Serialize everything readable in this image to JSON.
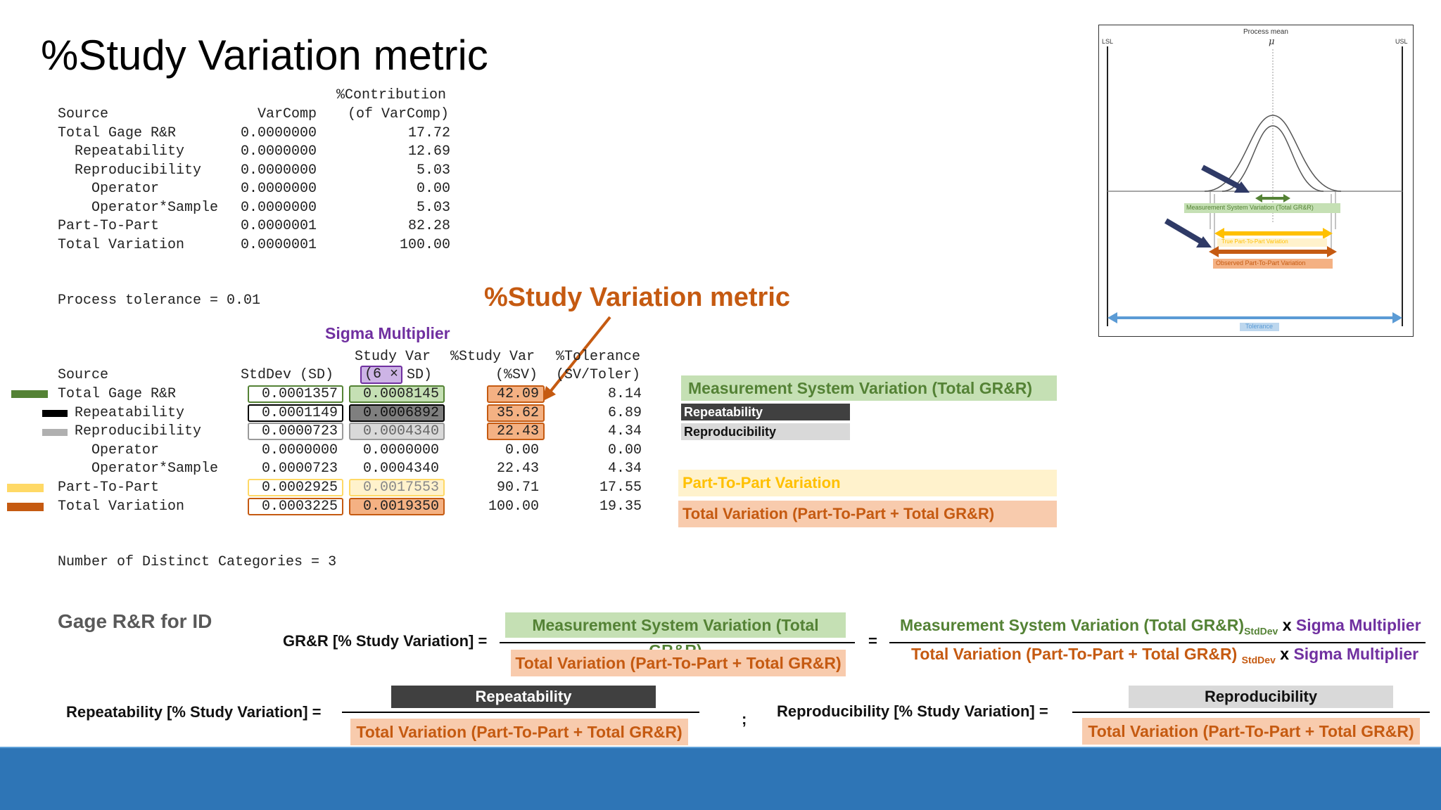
{
  "title": "%Study Variation metric",
  "table1": {
    "header_pct_contribution": "%Contribution",
    "header_source": "Source",
    "header_varcomp": "VarComp",
    "header_of_varcomp": "(of VarComp)",
    "rows": [
      {
        "source": "Total Gage R&R",
        "varcomp": "0.0000000",
        "contrib": "17.72"
      },
      {
        "source": "  Repeatability",
        "varcomp": "0.0000000",
        "contrib": "12.69"
      },
      {
        "source": "  Reproducibility",
        "varcomp": "0.0000000",
        "contrib": "5.03"
      },
      {
        "source": "    Operator",
        "varcomp": "0.0000000",
        "contrib": "0.00"
      },
      {
        "source": "    Operator*Sample",
        "varcomp": "0.0000000",
        "contrib": "5.03"
      },
      {
        "source": "Part-To-Part",
        "varcomp": "0.0000001",
        "contrib": "82.28"
      },
      {
        "source": "Total Variation",
        "varcomp": "0.0000001",
        "contrib": "100.00"
      }
    ]
  },
  "process_tolerance": "Process tolerance = 0.01",
  "callout_metric": "%Study Variation metric",
  "sigma_multiplier_label": "Sigma Multiplier",
  "table2": {
    "header_study_var": "Study Var",
    "header_pct_study_var": "%Study Var",
    "header_pct_tolerance": "%Tolerance",
    "header_source": "Source",
    "header_stddev": "StdDev (SD)",
    "header_6sd_box": "(6 ×",
    "header_6sd_rest": "SD)",
    "header_sv": "(%SV)",
    "header_sv_toler": "(SV/Toler)",
    "rows": [
      {
        "source": "Total Gage R&R",
        "sd": "0.0001357",
        "sv": "0.0008145",
        "psv": "42.09",
        "ptol": "8.14"
      },
      {
        "source": "  Repeatability",
        "sd": "0.0001149",
        "sv": "0.0006892",
        "psv": "35.62",
        "ptol": "6.89"
      },
      {
        "source": "  Reproducibility",
        "sd": "0.0000723",
        "sv": "0.0004340",
        "psv": "22.43",
        "ptol": "4.34"
      },
      {
        "source": "    Operator",
        "sd": "0.0000000",
        "sv": "0.0000000",
        "psv": "0.00",
        "ptol": "0.00"
      },
      {
        "source": "    Operator*Sample",
        "sd": "0.0000723",
        "sv": "0.0004340",
        "psv": "22.43",
        "ptol": "4.34"
      },
      {
        "source": "Part-To-Part",
        "sd": "0.0002925",
        "sv": "0.0017553",
        "psv": "90.71",
        "ptol": "17.55"
      },
      {
        "source": "Total Variation",
        "sd": "0.0003225",
        "sv": "0.0019350",
        "psv": "100.00",
        "ptol": "19.35"
      }
    ]
  },
  "distinct_categories": "Number of Distinct Categories = 3",
  "legend": {
    "msv": "Measurement System Variation (Total GR&R)",
    "repeatability": "Repeatability",
    "reproducibility": "Reproducibility",
    "part_to_part": "Part-To-Part Variation",
    "total_variation": "Total Variation (Part-To-Part + Total GR&R)"
  },
  "diagram": {
    "process_mean": "Process mean",
    "mu": "μ",
    "lsl": "LSL",
    "usl": "USL",
    "msv_label": "Measurement System Variation (Total GR&R)",
    "true_ptp": "True Part-To-Part Variation",
    "observed_ptp": "Observed Part-To-Part Variation",
    "tolerance": "Tolerance"
  },
  "formulas": {
    "gage_rr_heading": "Gage R&R for ID",
    "grr_lhs": "GR&R [% Study Variation] =",
    "grr_num": "Measurement System Variation (Total GR&R)",
    "grr_den": "Total Variation (Part-To-Part + Total GR&R)",
    "equals": "=",
    "rhs_num_main": "Measurement System Variation (Total GR&R)",
    "rhs_den_main": "Total Variation (Part-To-Part + Total GR&R)",
    "stddev_sub": "StdDev",
    "times": "x",
    "sigma_multiplier": "Sigma Multiplier",
    "rep_lhs": "Repeatability [% Study Variation] =",
    "rep_num": "Repeatability",
    "rep_den": "Total Variation (Part-To-Part + Total GR&R)",
    "semicolon": ";",
    "repro_lhs": "Reproducibility [% Study Variation] =",
    "repro_num": "Reproducibility",
    "repro_den": "Total Variation (Part-To-Part + Total GR&R)"
  },
  "colors": {
    "green": "#548235",
    "green_fill": "#c5e0b4",
    "orange": "#c55a11",
    "orange_fill": "#f4b183",
    "orange_light": "#f8cbad",
    "yellow": "#ffd966",
    "yellow_light": "#fff2cc",
    "purple": "#7030a0",
    "purple_fill": "#cdb4e6",
    "dark_gray": "#404040",
    "light_gray": "#d9d9d9",
    "blue": "#2e75b6"
  }
}
